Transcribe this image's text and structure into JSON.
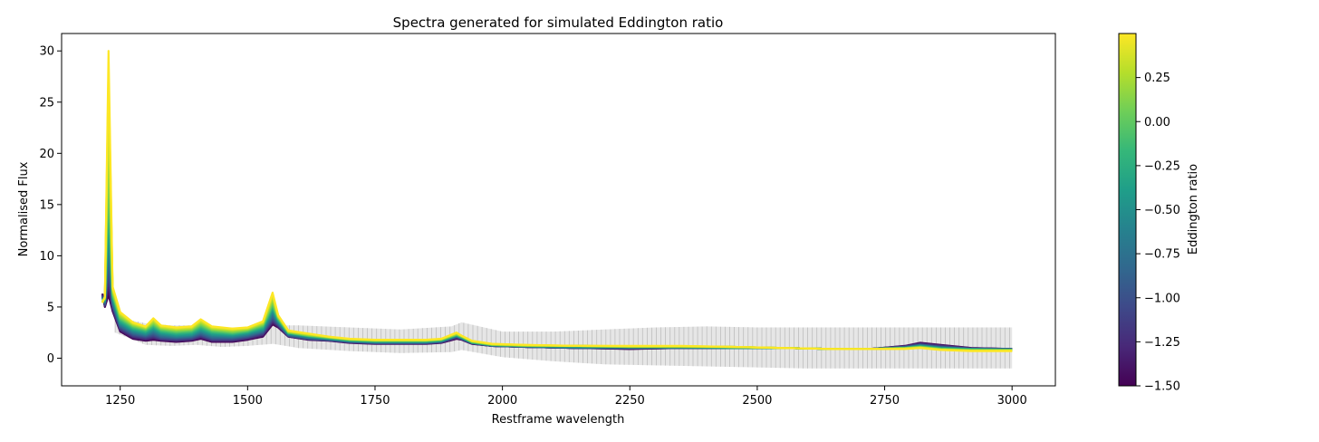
{
  "chart_data": {
    "type": "line",
    "title": "Spectra  generated for simulated Eddington ratio",
    "xlabel": "Restframe wavelength",
    "ylabel": "Normalised Flux",
    "xlim": [
      1135,
      3085
    ],
    "ylim": [
      -2.7,
      31.7
    ],
    "xticks": [
      1250,
      1500,
      1750,
      2000,
      2250,
      2500,
      2750,
      3000
    ],
    "yticks": [
      0,
      5,
      10,
      15,
      20,
      25,
      30
    ],
    "grid": false,
    "colorbar": {
      "label": "Eddington ratio",
      "range": [
        -1.5,
        0.5
      ],
      "ticks": [
        "0.25",
        "0.00",
        "−0.25",
        "−0.50",
        "−0.75",
        "−1.00",
        "−1.25",
        "−1.50"
      ],
      "tick_values": [
        0.25,
        0.0,
        -0.25,
        -0.5,
        -0.75,
        -1.0,
        -1.25,
        -1.5
      ],
      "colormap": [
        "#440154",
        "#482878",
        "#3e4989",
        "#31688e",
        "#26828e",
        "#1f9e89",
        "#35b779",
        "#6ece58",
        "#b5de2b",
        "#fde725"
      ]
    },
    "wavelength": [
      1215,
      1220,
      1227,
      1235,
      1250,
      1275,
      1300,
      1315,
      1330,
      1360,
      1390,
      1408,
      1430,
      1470,
      1500,
      1530,
      1549,
      1560,
      1580,
      1620,
      1660,
      1700,
      1750,
      1800,
      1850,
      1880,
      1910,
      1920,
      1940,
      1980,
      2050,
      2150,
      2250,
      2350,
      2450,
      2550,
      2650,
      2720,
      2790,
      2820,
      2860,
      2920,
      3000
    ],
    "series": [
      {
        "eddington_ratio": -1.5,
        "values": [
          6.3,
          5.0,
          6.2,
          4.6,
          2.6,
          1.9,
          1.7,
          1.8,
          1.7,
          1.6,
          1.7,
          1.9,
          1.6,
          1.6,
          1.8,
          2.1,
          3.3,
          3.0,
          2.1,
          1.8,
          1.7,
          1.5,
          1.4,
          1.4,
          1.4,
          1.5,
          1.9,
          1.8,
          1.4,
          1.2,
          1.1,
          1.0,
          0.9,
          1.0,
          1.0,
          1.0,
          0.9,
          0.9,
          1.2,
          1.5,
          1.3,
          1.0,
          0.9
        ]
      },
      {
        "eddington_ratio": -1.0,
        "values": [
          6.0,
          5.3,
          9.0,
          5.2,
          3.0,
          2.3,
          2.1,
          2.3,
          2.0,
          1.9,
          2.0,
          2.3,
          1.9,
          1.9,
          2.1,
          2.5,
          3.9,
          3.3,
          2.2,
          1.9,
          1.8,
          1.6,
          1.5,
          1.5,
          1.5,
          1.6,
          2.1,
          1.9,
          1.5,
          1.2,
          1.1,
          1.0,
          1.0,
          1.0,
          1.0,
          1.0,
          0.9,
          0.9,
          1.1,
          1.3,
          1.1,
          0.9,
          0.9
        ]
      },
      {
        "eddington_ratio": -0.5,
        "values": [
          5.8,
          5.6,
          13.0,
          5.8,
          3.4,
          2.7,
          2.4,
          2.8,
          2.4,
          2.2,
          2.3,
          2.7,
          2.3,
          2.2,
          2.4,
          2.8,
          4.6,
          3.6,
          2.4,
          2.1,
          1.9,
          1.7,
          1.6,
          1.6,
          1.6,
          1.7,
          2.2,
          2.0,
          1.5,
          1.3,
          1.2,
          1.1,
          1.1,
          1.1,
          1.0,
          1.0,
          0.9,
          0.9,
          1.0,
          1.2,
          1.0,
          0.9,
          0.8
        ]
      },
      {
        "eddington_ratio": 0.0,
        "values": [
          5.6,
          5.8,
          18.0,
          6.3,
          3.9,
          3.1,
          2.8,
          3.3,
          2.8,
          2.6,
          2.7,
          3.2,
          2.7,
          2.5,
          2.7,
          3.2,
          5.3,
          3.9,
          2.5,
          2.2,
          2.0,
          1.8,
          1.7,
          1.7,
          1.7,
          1.8,
          2.3,
          2.1,
          1.6,
          1.3,
          1.2,
          1.2,
          1.1,
          1.1,
          1.1,
          1.0,
          0.9,
          0.9,
          1.0,
          1.1,
          0.9,
          0.8,
          0.8
        ]
      },
      {
        "eddington_ratio": 0.5,
        "values": [
          5.4,
          6.0,
          30.0,
          7.0,
          4.5,
          3.5,
          3.1,
          3.9,
          3.2,
          3.0,
          3.1,
          3.8,
          3.1,
          2.9,
          3.0,
          3.6,
          6.4,
          4.2,
          2.7,
          2.4,
          2.1,
          1.9,
          1.8,
          1.8,
          1.8,
          1.9,
          2.5,
          2.2,
          1.7,
          1.4,
          1.3,
          1.2,
          1.2,
          1.2,
          1.1,
          1.0,
          0.9,
          0.9,
          0.9,
          1.0,
          0.8,
          0.7,
          0.7
        ]
      }
    ],
    "error_band": {
      "wavelength": [
        1240,
        1300,
        1350,
        1400,
        1450,
        1500,
        1550,
        1600,
        1700,
        1800,
        1900,
        1920,
        2000,
        2100,
        2200,
        2300,
        2400,
        2500,
        2600,
        2700,
        2800,
        2900,
        3000
      ],
      "lower": [
        2.5,
        1.3,
        1.2,
        1.3,
        1.1,
        1.2,
        1.4,
        1.0,
        0.7,
        0.5,
        0.6,
        0.8,
        0.1,
        -0.3,
        -0.6,
        -0.7,
        -0.8,
        -0.9,
        -1.0,
        -1.0,
        -1.0,
        -1.0,
        -1.0
      ],
      "upper": [
        4.0,
        3.4,
        3.2,
        3.2,
        3.0,
        3.0,
        3.2,
        3.2,
        3.0,
        2.8,
        3.1,
        3.5,
        2.6,
        2.6,
        2.8,
        3.0,
        3.1,
        3.0,
        3.0,
        3.0,
        3.0,
        3.0,
        3.0
      ]
    }
  }
}
